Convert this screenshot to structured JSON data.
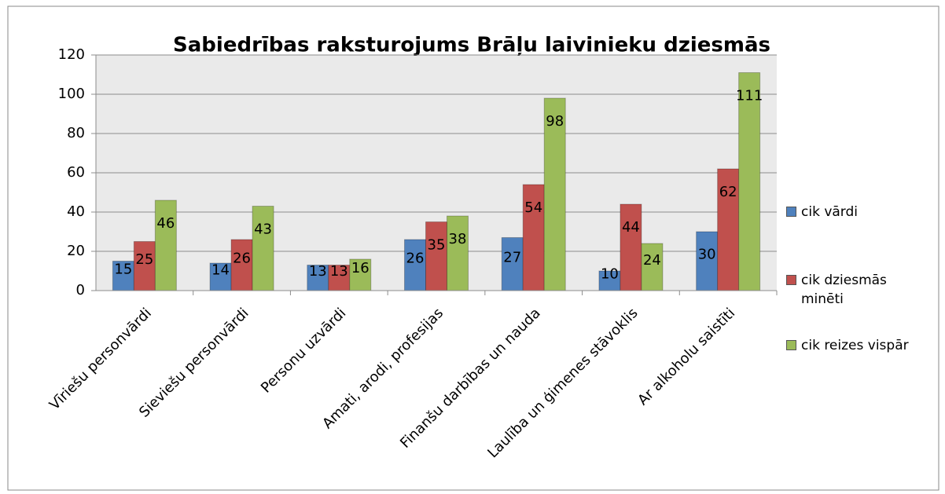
{
  "chart_data": {
    "type": "bar",
    "title": "Sabiedrības raksturojums Brāļu laivinieku dziesmās",
    "categories": [
      "Vīriešu personvārdi",
      "Sieviešu personvārdi",
      "Personu uzvārdi",
      "Amati, arodi, profesijas",
      "Finanšu darbības un nauda",
      "Laulība un ģimenes stāvoklis",
      "Ar alkoholu saistīti"
    ],
    "series": [
      {
        "name": "cik vārdi",
        "color": "#4f81bd",
        "values": [
          15,
          14,
          13,
          26,
          27,
          10,
          30
        ]
      },
      {
        "name": "cik dziesmās minēti",
        "color": "#c0504d",
        "values": [
          25,
          26,
          13,
          35,
          54,
          44,
          62
        ]
      },
      {
        "name": "cik reizes vispār",
        "color": "#9bbb59",
        "values": [
          46,
          43,
          16,
          38,
          98,
          24,
          111
        ]
      }
    ],
    "ylim": [
      0,
      120
    ],
    "yticks": [
      0,
      20,
      40,
      60,
      80,
      100,
      120
    ],
    "grid": true,
    "legend": "right"
  }
}
